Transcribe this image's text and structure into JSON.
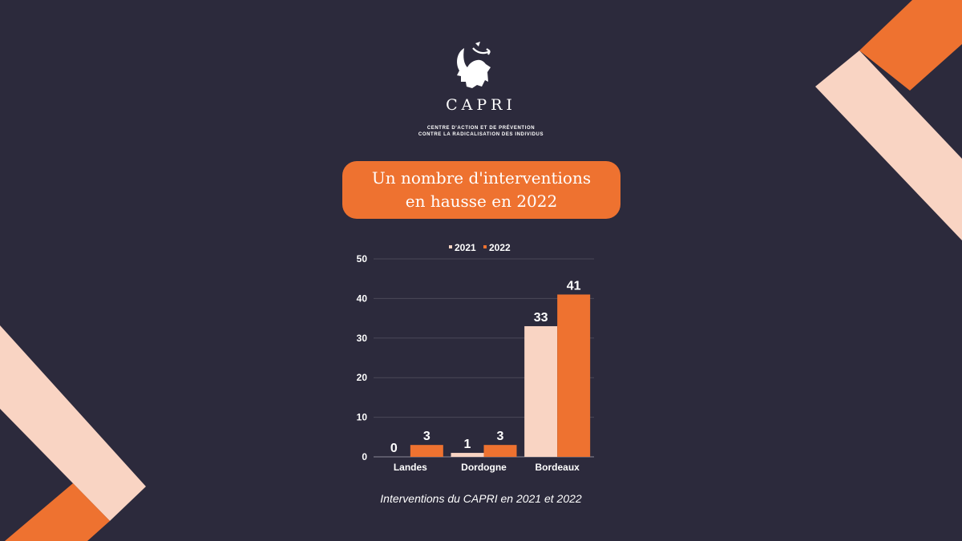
{
  "colors": {
    "background": "#2c2a3c",
    "orange": "#ee7230",
    "peach": "#f9d4c3",
    "text": "#ffffff",
    "grid": "#4a4858"
  },
  "brand": {
    "logo_icon": "head-with-arrows-icon",
    "name": "CAPRI",
    "tagline_line1": "CENTRE D'ACTION ET DE PRÉVENTION",
    "tagline_line2": "CONTRE LA RADICALISATION DES INDIVIDUS"
  },
  "headline": {
    "line1": "Un nombre d'interventions",
    "line2": "en hausse en 2022"
  },
  "caption": "Interventions du CAPRI en 2021 et 2022",
  "chart_data": {
    "type": "bar",
    "title": "",
    "xlabel": "",
    "ylabel": "",
    "categories": [
      "Landes",
      "Dordogne",
      "Bordeaux"
    ],
    "series": [
      {
        "name": "2021",
        "values": [
          0,
          1,
          33
        ],
        "color": "#f9d4c3"
      },
      {
        "name": "2022",
        "values": [
          3,
          3,
          41
        ],
        "color": "#ee7230"
      }
    ],
    "ylim": [
      0,
      50
    ],
    "yticks": [
      0,
      10,
      20,
      30,
      40,
      50
    ],
    "grid": true,
    "legend": "top-center",
    "data_labels": true
  }
}
